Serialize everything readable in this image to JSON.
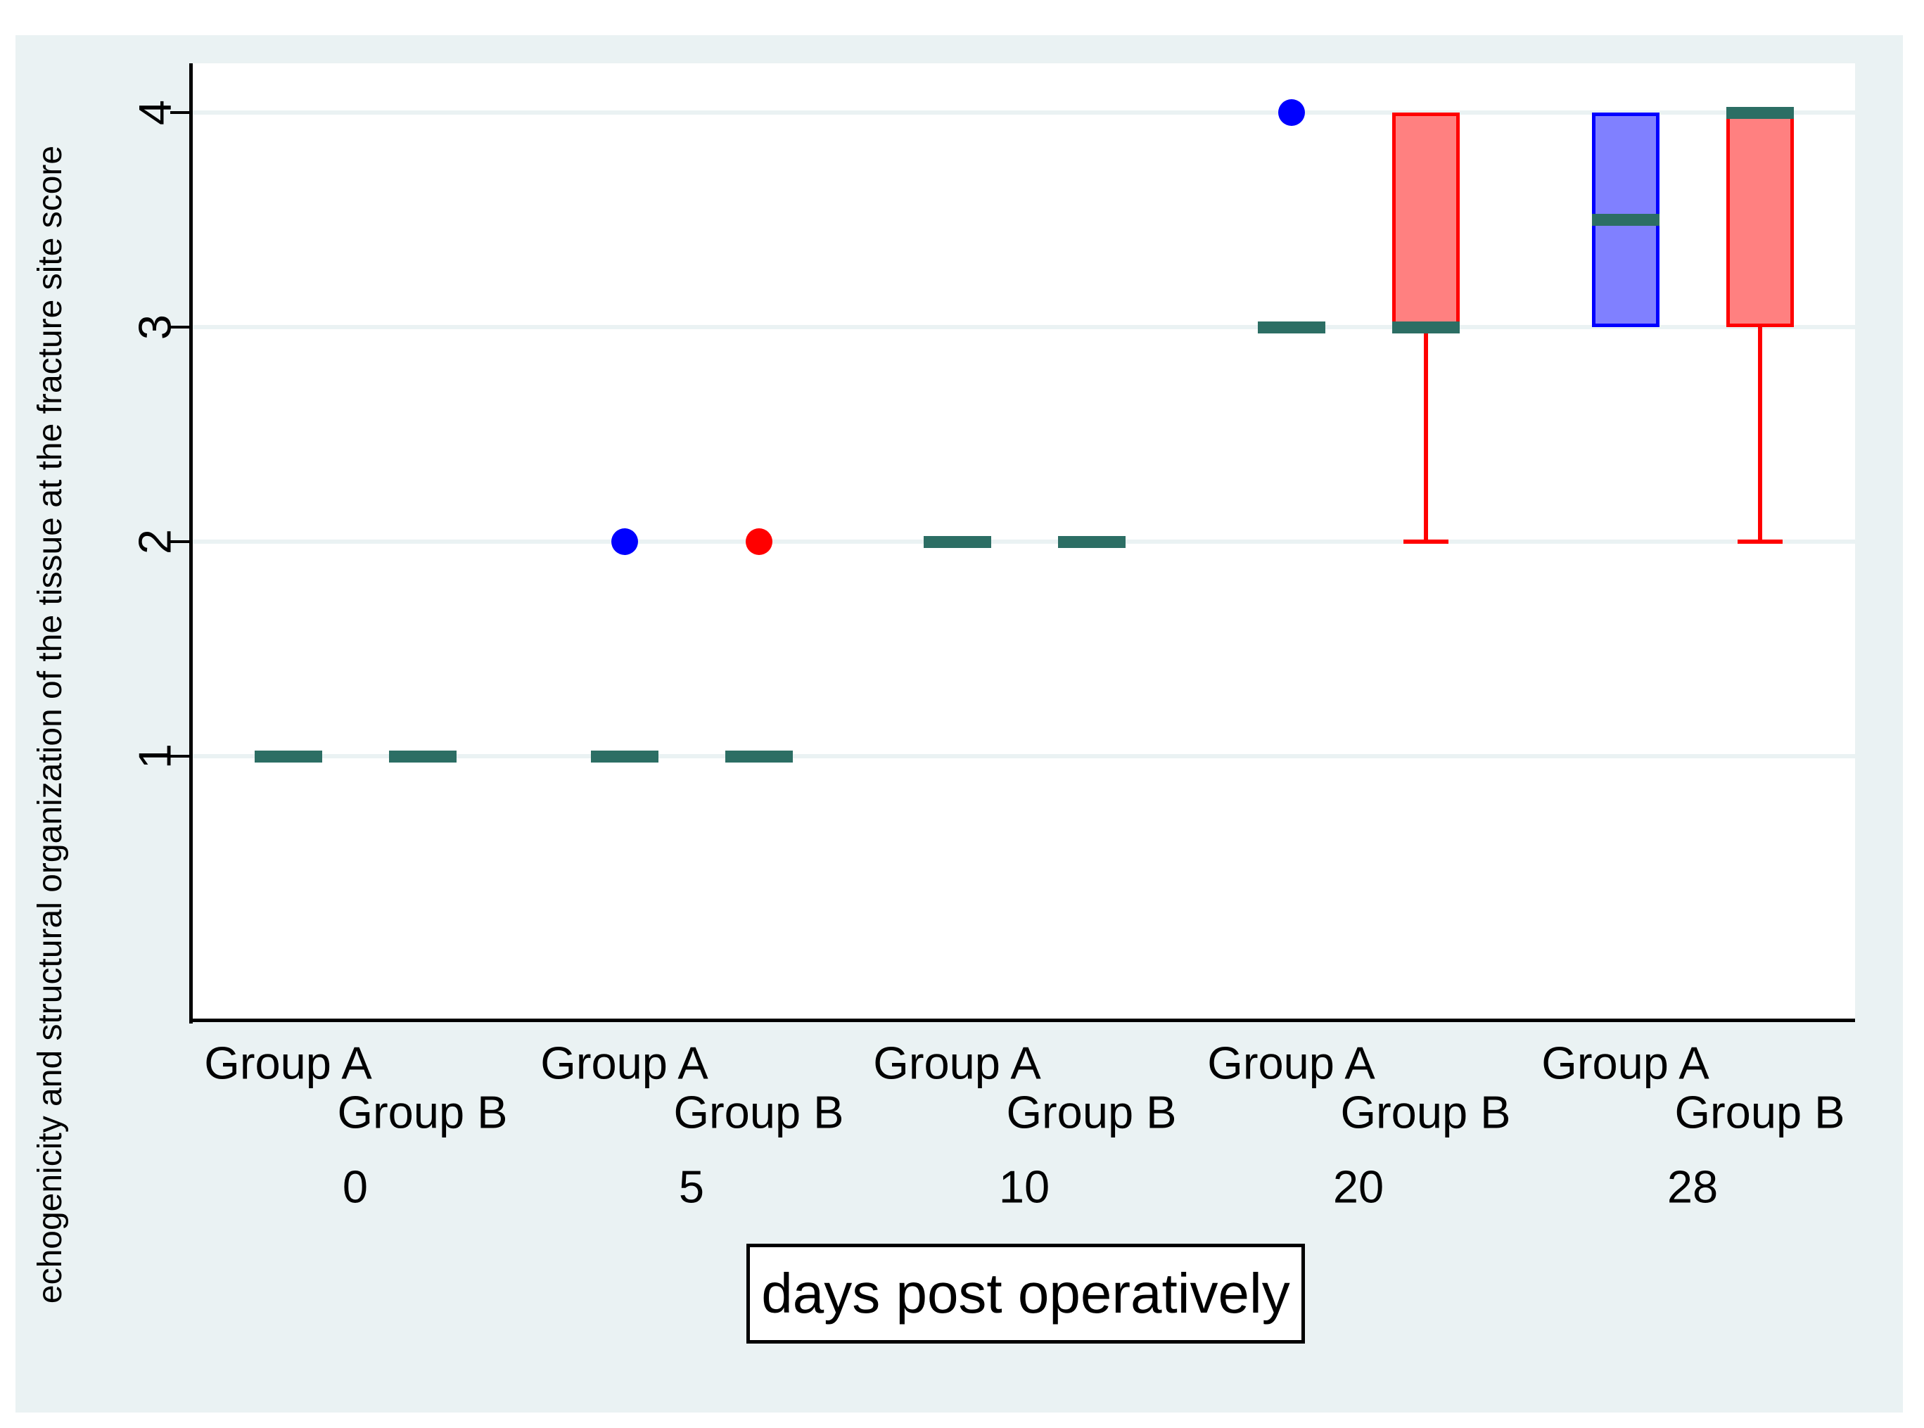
{
  "figure": {
    "canvas_bg": "#ffffff",
    "graph_bg": "#eaf2f3",
    "plot_bg": "#ffffff",
    "grid_color": "#eaf2f3",
    "axis_color": "#000000",
    "text_color": "#000000"
  },
  "y_axis": {
    "title": "echogenicity and structural organization of the tissue at the fracture site score",
    "ticks": [
      1,
      2,
      3,
      4
    ],
    "tick_labels": [
      "1",
      "2",
      "3",
      "4"
    ]
  },
  "x_axis": {
    "title": "days post operatively",
    "group_labels": [
      "Group A",
      "Group B"
    ],
    "day_labels": [
      "0",
      "5",
      "10",
      "20",
      "28"
    ]
  },
  "chart_data": {
    "type": "box",
    "orientation": "vertical",
    "title": "",
    "xlabel": "days post operatively",
    "ylabel": "echogenicity and structural organization of the tissue at the fracture site score",
    "ylim": [
      -0.23,
      4.26
    ],
    "yticks": [
      1,
      2,
      3,
      4
    ],
    "grid": "horizontal",
    "legend": "none",
    "days": [
      0,
      5,
      10,
      20,
      28
    ],
    "groups": [
      "Group A",
      "Group B"
    ],
    "group_styles": {
      "Group A": {
        "line": "#0000ff",
        "fill": "#8080ff"
      },
      "Group B": {
        "line": "#ff0000",
        "fill": "#ff8080"
      }
    },
    "median_color": "#2c6e64",
    "boxes": [
      {
        "day": 0,
        "group": "Group A",
        "median": 1
      },
      {
        "day": 0,
        "group": "Group B",
        "median": 1
      },
      {
        "day": 5,
        "group": "Group A",
        "median": 1,
        "outliers": [
          2
        ]
      },
      {
        "day": 5,
        "group": "Group B",
        "median": 1,
        "outliers": [
          2
        ]
      },
      {
        "day": 10,
        "group": "Group A",
        "median": 2
      },
      {
        "day": 10,
        "group": "Group B",
        "median": 2
      },
      {
        "day": 20,
        "group": "Group A",
        "median": 3,
        "outliers": [
          4
        ]
      },
      {
        "day": 20,
        "group": "Group B",
        "median": 3,
        "q1": 3,
        "q3": 4,
        "whisker_low": 2
      },
      {
        "day": 28,
        "group": "Group A",
        "median": 3.5,
        "q1": 3,
        "q3": 4
      },
      {
        "day": 28,
        "group": "Group B",
        "median": 4,
        "q1": 3,
        "q3": 4,
        "whisker_low": 2
      }
    ]
  }
}
